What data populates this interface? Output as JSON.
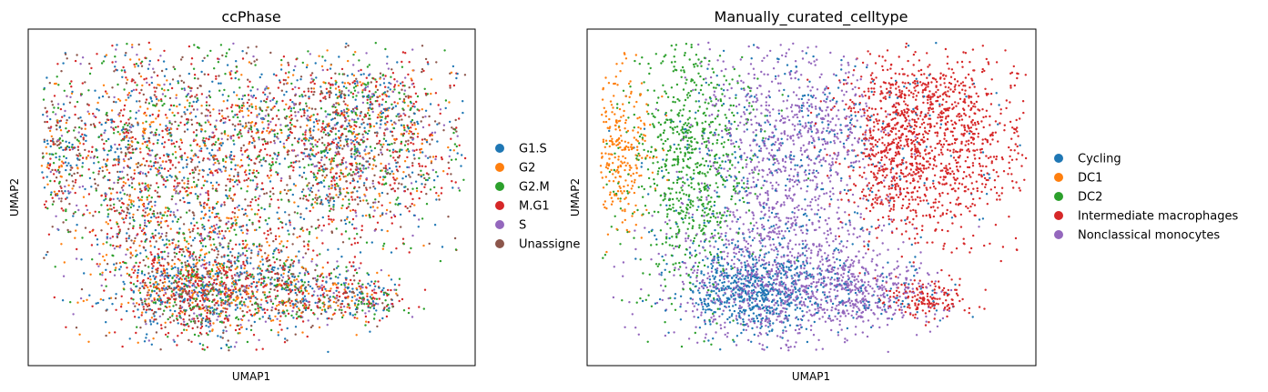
{
  "chart_data": [
    {
      "type": "scatter",
      "title": "ccPhase",
      "xlabel": "UMAP1",
      "ylabel": "UMAP2",
      "grid": false,
      "legend_position": "right",
      "xticks": [],
      "yticks": [],
      "point_count_estimate": 6000,
      "series": [
        {
          "name": "G1.S",
          "color": "#1f77b4",
          "share": 0.18
        },
        {
          "name": "G2",
          "color": "#ff7f0e",
          "share": 0.14
        },
        {
          "name": "G2.M",
          "color": "#2ca02c",
          "share": 0.17
        },
        {
          "name": "M.G1",
          "color": "#d62728",
          "share": 0.25
        },
        {
          "name": "S",
          "color": "#9467bd",
          "share": 0.08
        },
        {
          "name": "Unassigne",
          "color": "#8c564b",
          "share": 0.18
        }
      ]
    },
    {
      "type": "scatter",
      "title": "Manually_curated_celltype",
      "xlabel": "UMAP1",
      "ylabel": "UMAP2",
      "grid": false,
      "legend_position": "right",
      "xticks": [],
      "yticks": [],
      "point_count_estimate": 6000,
      "series": [
        {
          "name": "Cycling",
          "color": "#1f77b4"
        },
        {
          "name": "DC1",
          "color": "#ff7f0e"
        },
        {
          "name": "DC2",
          "color": "#2ca02c"
        },
        {
          "name": "Intermediate macrophages",
          "color": "#d62728"
        },
        {
          "name": "Nonclassical monocytes",
          "color": "#9467bd"
        }
      ]
    }
  ]
}
